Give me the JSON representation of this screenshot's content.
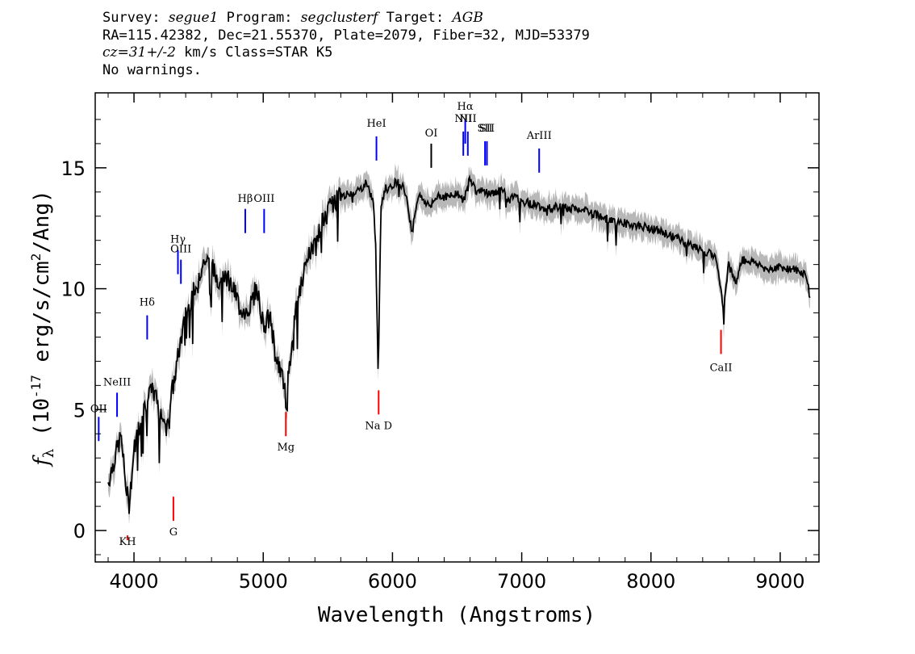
{
  "header": {
    "line1": {
      "survey_label": "Survey: ",
      "survey": "segue1",
      "program_label": " Program: ",
      "program": "segclusterf",
      "target_label": " Target: ",
      "target": "AGB"
    },
    "line2": "RA=115.42382, Dec=21.55370, Plate=2079, Fiber=32, MJD=53379",
    "line3": {
      "cz": "cz=31+/-2",
      "rest": " km/s Class=STAR K5"
    },
    "line4": "No warnings."
  },
  "chart_data": {
    "type": "line",
    "xlabel": "Wavelength (Angstroms)",
    "ylabel": "f_λ (10^-17 erg/s/cm^2/Ang)",
    "xlim": [
      3700,
      9300
    ],
    "ylim": [
      -1.3,
      18.1
    ],
    "x_ticks": [
      4000,
      5000,
      6000,
      7000,
      8000,
      9000
    ],
    "x_tick_labels": [
      "4000",
      "5000",
      "6000",
      "7000",
      "8000",
      "9000"
    ],
    "y_ticks": [
      0,
      5,
      10,
      15
    ],
    "y_tick_labels": [
      "0",
      "5",
      "10",
      "15"
    ],
    "series": [
      {
        "color": "#000000",
        "x": [
          3800,
          3850,
          3900,
          3930,
          3960,
          4000,
          4050,
          4100,
          4150,
          4200,
          4250,
          4300,
          4330,
          4360,
          4400,
          4450,
          4500,
          4550,
          4600,
          4650,
          4700,
          4750,
          4800,
          4850,
          4900,
          4950,
          5000,
          5050,
          5100,
          5150,
          5180,
          5200,
          5250,
          5300,
          5350,
          5400,
          5450,
          5500,
          5550,
          5600,
          5650,
          5700,
          5750,
          5800,
          5850,
          5870,
          5890,
          5910,
          5950,
          6000,
          6050,
          6100,
          6150,
          6200,
          6250,
          6300,
          6350,
          6400,
          6450,
          6500,
          6550,
          6600,
          6650,
          6700,
          6750,
          6800,
          6850,
          6900,
          6950,
          7000,
          7100,
          7200,
          7300,
          7400,
          7500,
          7600,
          7700,
          7800,
          7900,
          8000,
          8100,
          8200,
          8300,
          8400,
          8500,
          8540,
          8560,
          8600,
          8660,
          8700,
          8800,
          8900,
          9000,
          9100,
          9200,
          9230
        ],
        "values": [
          2.0,
          3.0,
          3.9,
          2.2,
          1.0,
          3.3,
          4.6,
          5.4,
          5.8,
          5.0,
          4.3,
          5.9,
          6.8,
          7.8,
          8.8,
          9.8,
          10.6,
          11.2,
          10.9,
          10.4,
          10.7,
          10.2,
          9.5,
          9.0,
          9.3,
          10.1,
          8.5,
          8.8,
          7.2,
          6.3,
          5.3,
          6.8,
          8.9,
          10.3,
          11.3,
          11.8,
          12.6,
          13.2,
          13.6,
          13.8,
          13.9,
          14.0,
          14.1,
          14.4,
          13.6,
          12.0,
          6.0,
          13.5,
          14.2,
          14.3,
          14.5,
          14.0,
          12.4,
          13.9,
          13.6,
          13.4,
          13.9,
          13.8,
          13.8,
          14.0,
          13.6,
          14.6,
          14.0,
          14.1,
          13.9,
          14.0,
          14.1,
          13.6,
          13.9,
          13.6,
          13.5,
          13.3,
          13.4,
          13.3,
          13.2,
          13.0,
          12.8,
          12.7,
          12.6,
          12.5,
          12.3,
          12.1,
          11.8,
          11.6,
          11.3,
          10.0,
          9.3,
          11.0,
          10.2,
          11.2,
          11.1,
          10.8,
          10.9,
          10.8,
          10.6,
          9.6
        ]
      }
    ],
    "error_band_color": "#b8b8b8",
    "line_markers": [
      {
        "label": "KH",
        "wavelength": 3950,
        "color": "#ff0000",
        "side": "below",
        "y_top": -0.4,
        "y_bot": -0.2,
        "label_y": -0.6
      },
      {
        "label": "G",
        "wavelength": 4305,
        "color": "#ff0000",
        "side": "below",
        "y_top": 0.4,
        "y_bot": 1.4,
        "label_y": -0.2
      },
      {
        "label": "Mg",
        "wavelength": 5175,
        "color": "#ff0000",
        "side": "below",
        "y_top": 3.9,
        "y_bot": 4.9,
        "label_y": 3.3
      },
      {
        "label": "Na D",
        "wavelength": 5893,
        "color": "#ff0000",
        "side": "below",
        "y_top": 4.8,
        "y_bot": 5.8,
        "label_y": 4.2
      },
      {
        "label": "CaII",
        "wavelength": 8542,
        "color": "#ff0000",
        "side": "below",
        "y_top": 7.3,
        "y_bot": 8.3,
        "label_y": 6.6
      },
      {
        "label": "OII",
        "wavelength": 3727,
        "color": "#0000ff",
        "side": "above",
        "y_top": 4.7,
        "y_bot": 3.7,
        "label_y": 4.9
      },
      {
        "label": "NeIII",
        "wavelength": 3869,
        "color": "#0000ff",
        "side": "above",
        "y_top": 5.7,
        "y_bot": 4.7,
        "label_y": 6.0
      },
      {
        "label": "Hδ",
        "wavelength": 4102,
        "color": "#0000ff",
        "side": "above",
        "y_top": 8.9,
        "y_bot": 7.9,
        "label_y": 9.3
      },
      {
        "label": "Hγ",
        "wavelength": 4340,
        "color": "#0000ff",
        "side": "above",
        "y_top": 11.6,
        "y_bot": 10.6,
        "label_y": 11.9
      },
      {
        "label": "OIII",
        "wavelength": 4363,
        "color": "#0000ff",
        "side": "above",
        "y_top": 11.2,
        "y_bot": 10.2,
        "label_y": 11.5
      },
      {
        "label": "Hβ",
        "wavelength": 4861,
        "color": "#0000ff",
        "side": "above",
        "y_top": 13.3,
        "y_bot": 12.3,
        "label_y": 13.6
      },
      {
        "label": "OIII",
        "wavelength": 5007,
        "color": "#0000ff",
        "side": "above",
        "y_top": 13.3,
        "y_bot": 12.3,
        "label_y": 13.6
      },
      {
        "label": "HeI",
        "wavelength": 5876,
        "color": "#0000ff",
        "side": "above",
        "y_top": 16.3,
        "y_bot": 15.3,
        "label_y": 16.7
      },
      {
        "label": "OI",
        "wavelength": 6300,
        "color": "#000000",
        "side": "above",
        "y_top": 16.0,
        "y_bot": 15.0,
        "label_y": 16.3
      },
      {
        "label": "NII",
        "wavelength": 6548,
        "color": "#0000ff",
        "side": "above",
        "y_top": 16.5,
        "y_bot": 15.5,
        "label_y": 16.9
      },
      {
        "label": "Hα",
        "wavelength": 6563,
        "color": "#0000ff",
        "side": "above",
        "y_top": 17.0,
        "y_bot": 16.0,
        "label_y": 17.4
      },
      {
        "label": "NII",
        "wavelength": 6583,
        "color": "#0000ff",
        "side": "above",
        "y_top": 16.5,
        "y_bot": 15.5,
        "label_y": 16.9
      },
      {
        "label": "SII",
        "wavelength": 6716,
        "color": "#0000ff",
        "side": "above",
        "y_top": 16.1,
        "y_bot": 15.1,
        "label_y": 16.5
      },
      {
        "label": "SII",
        "wavelength": 6731,
        "color": "#0000ff",
        "side": "above",
        "y_top": 16.1,
        "y_bot": 15.1,
        "label_y": 16.5
      },
      {
        "label": "ArIII",
        "wavelength": 7135,
        "color": "#0000ff",
        "side": "above",
        "y_top": 15.8,
        "y_bot": 14.8,
        "label_y": 16.2
      }
    ],
    "grid": false,
    "legend": "none"
  }
}
